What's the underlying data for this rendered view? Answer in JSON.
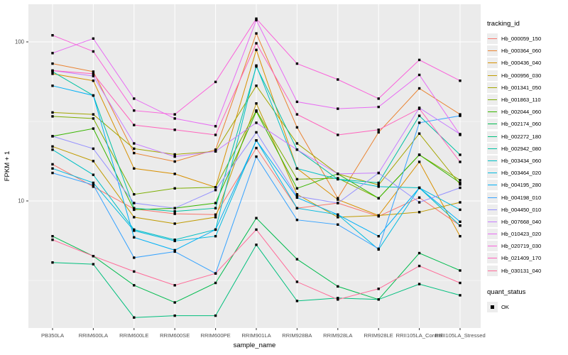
{
  "figure": {
    "type": "ggplot-line-chart",
    "panel_bg": "#ebebeb",
    "grid_color": "#ffffff",
    "tick_text_color": "#4d4d4d",
    "marker_color": "#000000"
  },
  "chart_data": {
    "type": "line",
    "title": "",
    "xlabel": "sample_name",
    "ylabel": "FPKM + 1",
    "yscale": "log10",
    "ytick_labels": [
      "100",
      "10"
    ],
    "ytick_values": [
      100,
      10
    ],
    "yminor_values": [
      31.62,
      3.162
    ],
    "ylim": [
      1.6,
      170
    ],
    "grid": true,
    "legend_position": "right",
    "legend_title": "tracking_id",
    "shape_legend_title": "quant_status",
    "shape_legend_items": [
      {
        "label": "OK",
        "marker": "black-square"
      }
    ],
    "categories": [
      "PB350LA",
      "RRIM600LA",
      "RRIM600LE",
      "RRIM600SE",
      "RRIM600PE",
      "RRIM901LA",
      "RRIM928BA",
      "RRIM928LA",
      "RRIM928LE",
      "RRII105LA_Control",
      "RRII105LA_Stressed"
    ],
    "series": [
      {
        "name": "Hb_000059_150",
        "color": "#F8766D",
        "values": [
          17,
          12.3,
          8.9,
          8.3,
          8.2,
          21.5,
          9,
          9.7,
          8,
          10.5,
          7
        ]
      },
      {
        "name": "Hb_000364_060",
        "color": "#EA8331",
        "values": [
          73,
          65,
          20,
          17.7,
          21,
          113,
          29,
          10.4,
          27,
          51,
          35
        ]
      },
      {
        "name": "Hb_000436_040",
        "color": "#D89000",
        "values": [
          63,
          57,
          16,
          14.8,
          12.2,
          89,
          16,
          10.2,
          8.1,
          17.6,
          6
        ]
      },
      {
        "name": "Hb_000956_030",
        "color": "#C09B00",
        "values": [
          22,
          17.8,
          7.9,
          7.2,
          7.9,
          41,
          11,
          7.9,
          8.1,
          8.5,
          9.8
        ]
      },
      {
        "name": "Hb_001341_050",
        "color": "#A3A500",
        "values": [
          36,
          35,
          21.3,
          19.6,
          20.5,
          53,
          23,
          14.8,
          12.6,
          26.5,
          12.7
        ]
      },
      {
        "name": "Hb_001863_110",
        "color": "#7CAE00",
        "values": [
          34,
          33,
          11,
          12,
          12.2,
          37,
          13.7,
          13.9,
          10.4,
          19.5,
          13.5
        ]
      },
      {
        "name": "Hb_002044_060",
        "color": "#39B600",
        "values": [
          25.5,
          28.5,
          8.8,
          9,
          9.7,
          36.5,
          12,
          14.8,
          10.4,
          19.5,
          13
        ]
      },
      {
        "name": "Hb_002174_060",
        "color": "#00BB4E",
        "values": [
          6,
          4.5,
          2.95,
          2.3,
          3.05,
          7.8,
          4.3,
          2.9,
          2.4,
          4.7,
          3.65
        ]
      },
      {
        "name": "Hb_002272_180",
        "color": "#00BF7D",
        "values": [
          4.1,
          4,
          1.85,
          1.9,
          1.9,
          5.3,
          2.35,
          2.45,
          2.4,
          3,
          2.55
        ]
      },
      {
        "name": "Hb_002942_080",
        "color": "#00C1A3",
        "values": [
          65,
          46,
          9,
          8.6,
          9,
          70,
          21,
          13.7,
          13,
          34.3,
          19.5
        ]
      },
      {
        "name": "Hb_003434_060",
        "color": "#00BFC4",
        "values": [
          21,
          14.6,
          6.6,
          5.7,
          6.6,
          71,
          16,
          13.7,
          12.3,
          12.1,
          7
        ]
      },
      {
        "name": "Hb_003464_020",
        "color": "#00BAE0",
        "values": [
          16,
          13,
          6.5,
          5.6,
          6,
          24,
          9,
          8.2,
          4.95,
          12.1,
          8.8
        ]
      },
      {
        "name": "Hb_004195_280",
        "color": "#00B0F6",
        "values": [
          53,
          46,
          5.9,
          4.9,
          6.6,
          24,
          10.5,
          8.2,
          6,
          12.1,
          7.4
        ]
      },
      {
        "name": "Hb_004198_010",
        "color": "#35A2FF",
        "values": [
          15,
          12.6,
          4.4,
          4.8,
          3.5,
          19,
          7.6,
          7.1,
          5,
          31,
          34.3
        ]
      },
      {
        "name": "Hb_004450_010",
        "color": "#9590FF",
        "values": [
          25.5,
          21.3,
          9.7,
          9,
          11.7,
          27,
          10.7,
          9.7,
          15,
          9.8,
          12.1
        ]
      },
      {
        "name": "Hb_007668_040",
        "color": "#C77CFF",
        "values": [
          66,
          61,
          23,
          19,
          20.5,
          31,
          21,
          14.8,
          15,
          38.5,
          26.3
        ]
      },
      {
        "name": "Hb_010423_020",
        "color": "#E76BF3",
        "values": [
          85,
          105,
          44,
          33,
          29.5,
          137,
          42,
          38,
          39,
          62,
          26
        ]
      },
      {
        "name": "Hb_020719_030",
        "color": "#FA62DB",
        "values": [
          110,
          87,
          37,
          35,
          56,
          140,
          73,
          58,
          44,
          77,
          57
        ]
      },
      {
        "name": "Hb_021409_170",
        "color": "#FF62BC",
        "values": [
          66,
          63,
          30,
          28,
          26,
          98,
          35,
          26,
          28,
          38,
          17.6
        ]
      },
      {
        "name": "Hb_030131_040",
        "color": "#FF6A98",
        "values": [
          5.7,
          4.5,
          3.6,
          2.95,
          3.5,
          6.6,
          3.1,
          2.4,
          2.8,
          3.9,
          3.05
        ]
      }
    ]
  }
}
